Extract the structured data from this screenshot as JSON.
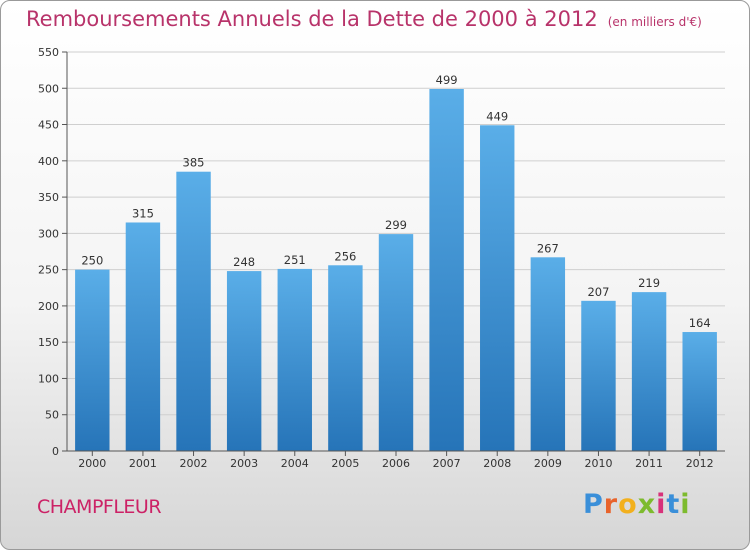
{
  "title": "Remboursements Annuels de la Dette de 2000 à 2012",
  "subtitle": "(en milliers d'€)",
  "commune": "CHAMPFLEUR",
  "logo": {
    "letters": [
      "P",
      "r",
      "o",
      "x",
      "i",
      "t",
      "i"
    ],
    "colors": [
      "#3a8fd9",
      "#e8632b",
      "#f2b01e",
      "#7dbb2e",
      "#d8317a",
      "#3a8fd9",
      "#7dbb2e"
    ]
  },
  "colors": {
    "bar_top": "#5aaee8",
    "bar_bottom": "#2674b8",
    "title": "#b8336a",
    "grid": "#cfcfcf"
  },
  "chart_data": {
    "type": "bar",
    "categories": [
      "2000",
      "2001",
      "2002",
      "2003",
      "2004",
      "2005",
      "2006",
      "2007",
      "2008",
      "2009",
      "2010",
      "2011",
      "2012"
    ],
    "values": [
      250,
      315,
      385,
      248,
      251,
      256,
      299,
      499,
      449,
      267,
      207,
      219,
      164
    ],
    "ylim": [
      0,
      550
    ],
    "yticks": [
      0,
      50,
      100,
      150,
      200,
      250,
      300,
      350,
      400,
      450,
      500,
      550
    ],
    "grid": true,
    "data_labels": true
  }
}
